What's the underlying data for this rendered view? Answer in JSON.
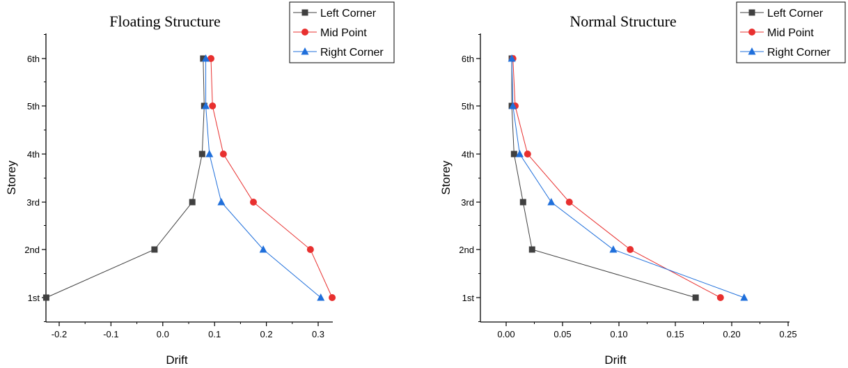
{
  "chart_data": [
    {
      "type": "line",
      "title": "Floating Structure",
      "xlabel": "Drift",
      "ylabel": "Storey",
      "categories": [
        "1st",
        "2nd",
        "3rd",
        "4th",
        "5th",
        "6th"
      ],
      "xlim": [
        -0.25,
        0.35
      ],
      "xticks": [
        -0.2,
        -0.1,
        0.0,
        0.1,
        0.2,
        0.3
      ],
      "xtick_labels": [
        "-0.2",
        "-0.1",
        "0.0",
        "0.1",
        "0.2",
        "0.3"
      ],
      "grid": false,
      "legend": "top-right",
      "series": [
        {
          "name": "Left Corner",
          "color": "#404040",
          "marker": "square",
          "values": [
            -0.225,
            -0.016,
            0.057,
            0.076,
            0.08,
            0.078
          ]
        },
        {
          "name": "Mid Point",
          "color": "#e8302f",
          "marker": "circle",
          "values": [
            0.327,
            0.285,
            0.175,
            0.117,
            0.096,
            0.093
          ]
        },
        {
          "name": "Right Corner",
          "color": "#1f6fdb",
          "marker": "triangle",
          "values": [
            0.305,
            0.194,
            0.113,
            0.09,
            0.083,
            0.083
          ]
        }
      ]
    },
    {
      "type": "line",
      "title": "Normal Structure",
      "xlabel": "Drift",
      "ylabel": "Storey",
      "categories": [
        "1st",
        "2nd",
        "3rd",
        "4th",
        "5th",
        "6th"
      ],
      "xlim": [
        -0.025,
        0.25
      ],
      "xticks": [
        0.0,
        0.05,
        0.1,
        0.15,
        0.2,
        0.25
      ],
      "xtick_labels": [
        "0.00",
        "0.05",
        "0.10",
        "0.15",
        "0.20",
        "0.25"
      ],
      "grid": false,
      "legend": "top-right",
      "series": [
        {
          "name": "Left Corner",
          "color": "#404040",
          "marker": "square",
          "values": [
            0.168,
            0.023,
            0.015,
            0.007,
            0.005,
            0.005
          ]
        },
        {
          "name": "Mid Point",
          "color": "#e8302f",
          "marker": "circle",
          "values": [
            0.19,
            0.11,
            0.056,
            0.019,
            0.008,
            0.006
          ]
        },
        {
          "name": "Right Corner",
          "color": "#1f6fdb",
          "marker": "triangle",
          "values": [
            0.211,
            0.095,
            0.04,
            0.012,
            0.006,
            0.005
          ]
        }
      ]
    }
  ]
}
